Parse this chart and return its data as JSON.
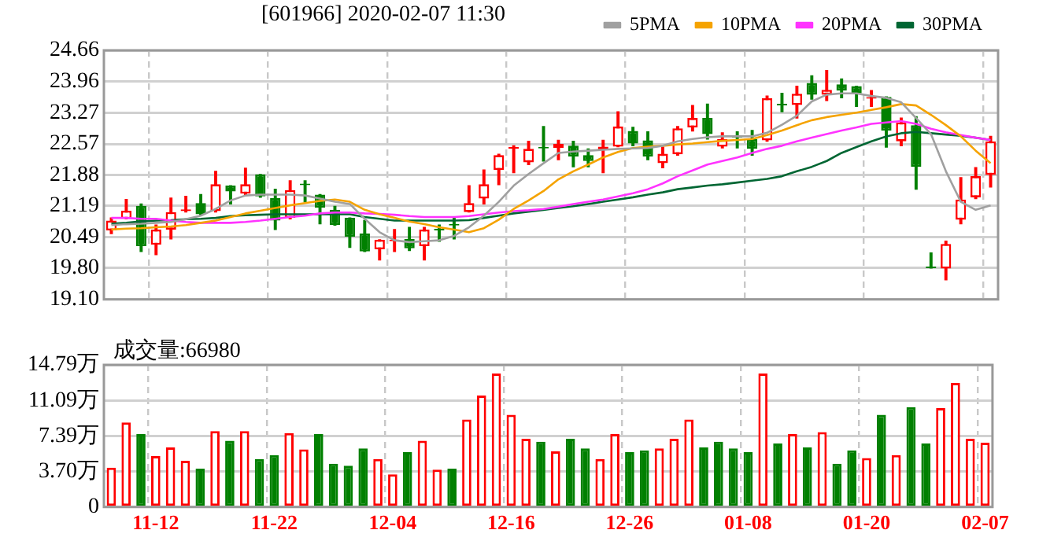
{
  "chart_data": [
    {
      "type": "candlestick",
      "title": "[601966] 2020-02-07 11:30",
      "categories": [
        null,
        null,
        null,
        null,
        null,
        null,
        null,
        null,
        null,
        null,
        null,
        null,
        null,
        null,
        null,
        null,
        null,
        null,
        null,
        null,
        null,
        null,
        null,
        null,
        null,
        null,
        null,
        null,
        null,
        null,
        null,
        null,
        null,
        null,
        null,
        null,
        null,
        null,
        null,
        null,
        null,
        null,
        null,
        null,
        null,
        null,
        null,
        null,
        null,
        null,
        null,
        null,
        null,
        null,
        null,
        null,
        null,
        null,
        null,
        null
      ],
      "ohlc": [
        [
          20.64,
          20.92,
          20.57,
          20.86
        ],
        [
          20.9,
          21.33,
          20.9,
          21.08
        ],
        [
          21.19,
          21.23,
          20.17,
          20.29
        ],
        [
          20.32,
          20.76,
          20.1,
          20.66
        ],
        [
          20.66,
          21.36,
          20.45,
          21.05
        ],
        [
          21.07,
          21.4,
          21.05,
          21.11
        ],
        [
          21.25,
          21.44,
          20.98,
          21.0
        ],
        [
          21.07,
          21.96,
          21.05,
          21.67
        ],
        [
          21.64,
          21.64,
          21.23,
          21.51
        ],
        [
          21.46,
          22.03,
          21.44,
          21.67
        ],
        [
          21.89,
          21.89,
          21.38,
          21.4
        ],
        [
          21.36,
          21.56,
          20.66,
          20.86
        ],
        [
          20.92,
          21.75,
          20.9,
          21.54
        ],
        [
          21.67,
          21.75,
          21.28,
          21.65
        ],
        [
          21.44,
          21.44,
          20.79,
          21.15
        ],
        [
          21.1,
          21.18,
          20.76,
          20.76
        ],
        [
          20.92,
          20.92,
          20.26,
          20.5
        ],
        [
          20.57,
          20.86,
          20.17,
          20.17
        ],
        [
          20.22,
          20.43,
          19.98,
          20.43
        ],
        [
          20.4,
          20.66,
          20.17,
          20.43
        ],
        [
          20.45,
          20.71,
          20.19,
          20.24
        ],
        [
          20.29,
          20.71,
          19.98,
          20.66
        ],
        [
          20.67,
          20.76,
          20.4,
          20.64
        ],
        [
          20.77,
          20.94,
          20.45,
          20.75
        ],
        [
          21.05,
          21.64,
          21.05,
          21.25
        ],
        [
          21.35,
          21.99,
          21.23,
          21.67
        ],
        [
          21.99,
          22.34,
          21.66,
          22.32
        ],
        [
          22.46,
          22.53,
          21.93,
          22.5
        ],
        [
          22.16,
          22.63,
          22.11,
          22.46
        ],
        [
          22.49,
          22.96,
          22.19,
          22.47
        ],
        [
          22.48,
          22.65,
          22.22,
          22.57
        ],
        [
          22.53,
          22.63,
          22.06,
          22.29
        ],
        [
          22.32,
          22.46,
          22.06,
          22.19
        ],
        [
          22.45,
          22.65,
          21.93,
          22.51
        ],
        [
          22.51,
          23.29,
          22.51,
          22.96
        ],
        [
          22.86,
          22.94,
          22.53,
          22.58
        ],
        [
          22.65,
          22.84,
          22.22,
          22.29
        ],
        [
          22.14,
          22.5,
          22.04,
          22.35
        ],
        [
          22.34,
          22.96,
          22.32,
          22.92
        ],
        [
          22.94,
          23.43,
          22.86,
          23.15
        ],
        [
          23.15,
          23.46,
          22.68,
          22.79
        ],
        [
          22.51,
          22.82,
          22.48,
          22.68
        ],
        [
          22.73,
          22.84,
          22.48,
          22.71
        ],
        [
          22.68,
          22.87,
          22.32,
          22.46
        ],
        [
          22.65,
          23.64,
          22.63,
          23.59
        ],
        [
          23.45,
          23.7,
          23.29,
          23.43
        ],
        [
          23.44,
          23.86,
          23.15,
          23.69
        ],
        [
          23.93,
          24.09,
          23.57,
          23.67
        ],
        [
          23.67,
          24.21,
          23.54,
          23.78
        ],
        [
          23.9,
          24.02,
          23.6,
          23.76
        ],
        [
          23.86,
          23.86,
          23.41,
          23.7
        ],
        [
          23.58,
          23.76,
          23.41,
          23.6
        ],
        [
          23.62,
          23.62,
          22.5,
          22.87
        ],
        [
          22.63,
          23.15,
          22.53,
          23.05
        ],
        [
          22.99,
          23.18,
          21.56,
          22.06
        ],
        [
          19.82,
          20.14,
          19.8,
          19.8
        ],
        [
          19.79,
          20.4,
          19.54,
          20.34
        ],
        [
          20.88,
          21.82,
          20.79,
          21.33
        ],
        [
          21.38,
          22.04,
          21.35,
          21.85
        ],
        [
          21.88,
          22.74,
          21.61,
          22.63
        ]
      ],
      "colors": [
        "#ff0000",
        "#ff0000",
        "#008000",
        "#ff0000",
        "#ff0000",
        "#ff0000",
        "#008000",
        "#ff0000",
        "#008000",
        "#ff0000",
        "#008000",
        "#008000",
        "#ff0000",
        "#008000",
        "#008000",
        "#008000",
        "#008000",
        "#008000",
        "#ff0000",
        "#ff0000",
        "#008000",
        "#ff0000",
        "#008000",
        "#008000",
        "#ff0000",
        "#ff0000",
        "#ff0000",
        "#ff0000",
        "#ff0000",
        "#008000",
        "#ff0000",
        "#008000",
        "#008000",
        "#ff0000",
        "#ff0000",
        "#008000",
        "#008000",
        "#ff0000",
        "#ff0000",
        "#ff0000",
        "#008000",
        "#ff0000",
        "#008000",
        "#008000",
        "#ff0000",
        "#008000",
        "#ff0000",
        "#008000",
        "#ff0000",
        "#008000",
        "#008000",
        "#ff0000",
        "#008000",
        "#ff0000",
        "#008000",
        "#008000",
        "#ff0000",
        "#ff0000",
        "#ff0000",
        "#ff0000"
      ],
      "series": [
        {
          "name": "5PMA",
          "type": "line",
          "color": "#a0a0a0",
          "values": [
            20.76,
            20.78,
            20.79,
            20.81,
            20.83,
            20.89,
            20.97,
            21.12,
            21.31,
            21.42,
            21.44,
            21.44,
            21.44,
            21.42,
            21.35,
            21.28,
            21.23,
            20.9,
            20.6,
            20.42,
            20.38,
            20.4,
            20.42,
            20.52,
            20.71,
            20.97,
            21.28,
            21.64,
            21.9,
            22.14,
            22.37,
            22.4,
            22.42,
            22.44,
            22.46,
            22.47,
            22.48,
            22.53,
            22.63,
            22.68,
            22.72,
            22.74,
            22.74,
            22.74,
            22.82,
            23.0,
            23.2,
            23.52,
            23.67,
            23.7,
            23.7,
            23.64,
            23.6,
            23.5,
            23.15,
            22.79,
            21.96,
            21.28,
            21.1,
            21.2
          ]
        },
        {
          "name": "10PMA",
          "type": "line",
          "color": "#f5a300",
          "values": [
            20.66,
            20.68,
            20.69,
            20.71,
            20.73,
            20.76,
            20.81,
            20.86,
            20.94,
            21.02,
            21.08,
            21.14,
            21.2,
            21.25,
            21.3,
            21.33,
            21.28,
            21.1,
            21.0,
            20.92,
            20.84,
            20.78,
            20.71,
            20.66,
            20.6,
            20.69,
            20.88,
            21.12,
            21.31,
            21.52,
            21.78,
            21.96,
            22.11,
            22.27,
            22.39,
            22.48,
            22.51,
            22.53,
            22.56,
            22.58,
            22.61,
            22.64,
            22.66,
            22.68,
            22.77,
            22.87,
            22.99,
            23.1,
            23.17,
            23.22,
            23.27,
            23.33,
            23.39,
            23.46,
            23.43,
            23.22,
            22.99,
            22.74,
            22.42,
            22.14
          ]
        },
        {
          "name": "20PMA",
          "type": "line",
          "color": "#ff33ff",
          "values": [
            20.92,
            20.92,
            20.9,
            20.9,
            20.86,
            20.83,
            20.81,
            20.81,
            20.81,
            20.83,
            20.86,
            20.9,
            20.94,
            20.97,
            21.02,
            21.04,
            21.04,
            21.02,
            21.01,
            20.99,
            20.96,
            20.94,
            20.94,
            20.94,
            20.96,
            21.0,
            21.04,
            21.07,
            21.09,
            21.12,
            21.17,
            21.23,
            21.28,
            21.33,
            21.4,
            21.47,
            21.56,
            21.69,
            21.85,
            21.98,
            22.11,
            22.19,
            22.27,
            22.37,
            22.46,
            22.53,
            22.63,
            22.71,
            22.79,
            22.87,
            22.94,
            23.02,
            23.05,
            23.08,
            23.02,
            22.91,
            22.83,
            22.77,
            22.71,
            22.66
          ]
        },
        {
          "name": "30PMA",
          "type": "line",
          "color": "#006633",
          "values": [
            20.79,
            20.81,
            20.84,
            20.86,
            20.87,
            20.89,
            20.9,
            20.92,
            20.96,
            20.98,
            20.99,
            21.0,
            21.0,
            21.0,
            21.0,
            21.0,
            21.0,
            20.94,
            20.9,
            20.86,
            20.86,
            20.86,
            20.86,
            20.86,
            20.87,
            20.92,
            20.97,
            21.02,
            21.06,
            21.1,
            21.14,
            21.18,
            21.23,
            21.28,
            21.33,
            21.38,
            21.44,
            21.49,
            21.56,
            21.6,
            21.64,
            21.67,
            21.71,
            21.75,
            21.79,
            21.85,
            21.96,
            22.06,
            22.19,
            22.37,
            22.5,
            22.63,
            22.74,
            22.81,
            22.84,
            22.81,
            22.78,
            22.75,
            22.71,
            22.66
          ]
        }
      ],
      "ylim": [
        19.1,
        24.66
      ],
      "yticks": [
        {
          "value": 19.1,
          "label": "19.10"
        },
        {
          "value": 19.8,
          "label": "19.80"
        },
        20.49,
        21.19,
        21.88,
        22.57,
        23.27,
        23.96,
        24.66
      ],
      "grid": true,
      "legend": "top right"
    },
    {
      "type": "bar",
      "title": "成交量:66980",
      "categories": [
        null,
        null,
        null,
        "11-12",
        null,
        null,
        null,
        null,
        null,
        null,
        null,
        "11-22",
        null,
        null,
        null,
        null,
        null,
        null,
        null,
        "12-04",
        null,
        null,
        null,
        null,
        null,
        null,
        null,
        "12-16",
        null,
        null,
        null,
        null,
        null,
        null,
        null,
        "12-26",
        null,
        null,
        null,
        null,
        null,
        null,
        null,
        "01-08",
        null,
        null,
        null,
        null,
        null,
        null,
        null,
        "01-20",
        null,
        null,
        null,
        null,
        null,
        null,
        null,
        "02-07"
      ],
      "values": [
        4.1,
        8.8,
        7.6,
        5.3,
        6.2,
        4.8,
        4.0,
        7.9,
        6.9,
        7.9,
        5.0,
        5.4,
        7.7,
        6.0,
        7.6,
        4.5,
        4.3,
        6.1,
        5.0,
        3.4,
        5.7,
        6.9,
        3.9,
        4.0,
        9.1,
        11.6,
        13.9,
        9.6,
        7.1,
        6.8,
        5.8,
        7.1,
        6.1,
        5.0,
        7.6,
        5.7,
        5.9,
        6.1,
        7.1,
        9.1,
        6.2,
        6.8,
        6.1,
        5.7,
        13.9,
        6.6,
        7.6,
        6.2,
        7.8,
        4.5,
        5.9,
        5.1,
        9.6,
        5.4,
        10.4,
        6.6,
        10.3,
        12.9,
        7.1,
        6.7
      ],
      "colors": [
        "#ff0000",
        "#ff0000",
        "#008000",
        "#ff0000",
        "#ff0000",
        "#ff0000",
        "#008000",
        "#ff0000",
        "#008000",
        "#ff0000",
        "#008000",
        "#008000",
        "#ff0000",
        "#ff0000",
        "#008000",
        "#008000",
        "#008000",
        "#008000",
        "#ff0000",
        "#ff0000",
        "#008000",
        "#ff0000",
        "#ff0000",
        "#008000",
        "#ff0000",
        "#ff0000",
        "#ff0000",
        "#ff0000",
        "#ff0000",
        "#008000",
        "#ff0000",
        "#008000",
        "#008000",
        "#ff0000",
        "#ff0000",
        "#008000",
        "#008000",
        "#ff0000",
        "#ff0000",
        "#ff0000",
        "#008000",
        "#008000",
        "#008000",
        "#008000",
        "#ff0000",
        "#008000",
        "#ff0000",
        "#008000",
        "#ff0000",
        "#008000",
        "#008000",
        "#ff0000",
        "#008000",
        "#ff0000",
        "#008000",
        "#008000",
        "#ff0000",
        "#ff0000",
        "#ff0000",
        "#ff0000"
      ],
      "ylim": [
        0,
        14.79
      ],
      "yticks": [
        0,
        {
          "value": 3.7,
          "label": "3.70万"
        },
        {
          "value": 7.39,
          "label": "7.39万"
        },
        {
          "value": 11.09,
          "label": "11.09万"
        },
        {
          "value": 14.79,
          "label": "14.79万"
        }
      ],
      "grid": true
    }
  ]
}
